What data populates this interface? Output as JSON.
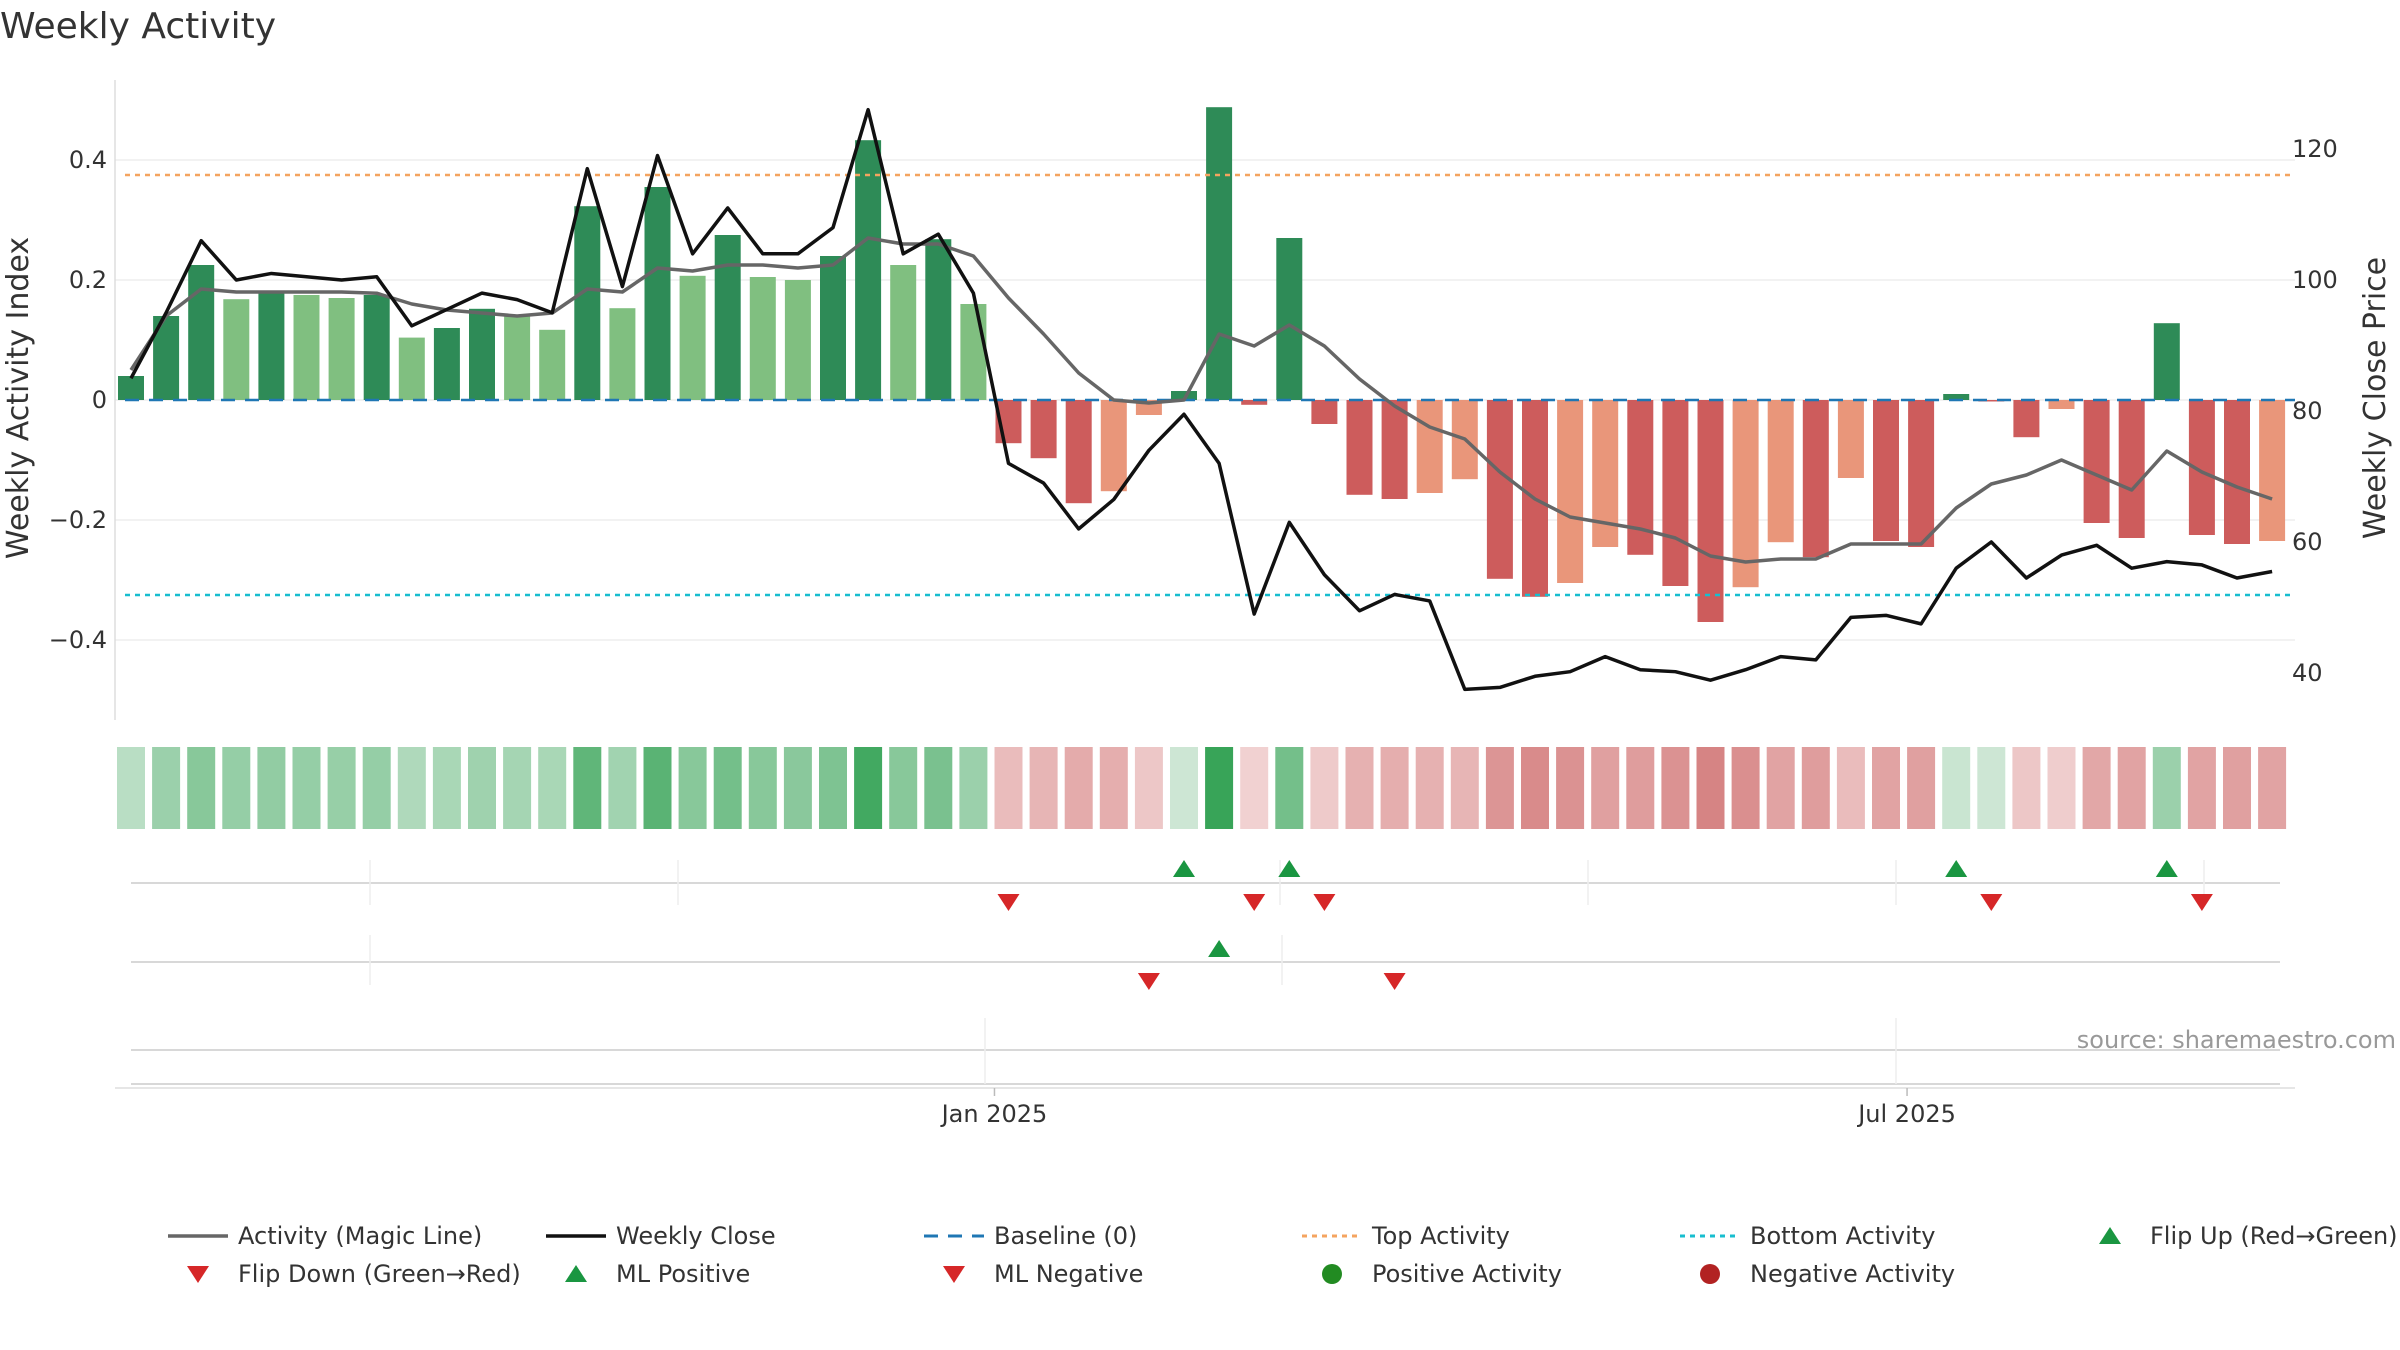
{
  "chart_data": {
    "type": "bar",
    "title": "Weekly Activity",
    "ylabel_left": "Weekly Activity Index",
    "ylabel_right": "Weekly Close Price",
    "ylim_left": [
      -0.53,
      0.53
    ],
    "ylim_right": [
      30,
      130
    ],
    "yticks_left": [
      {
        "value": 0.4,
        "label": "0.4"
      },
      {
        "value": 0.2,
        "label": "0.2"
      },
      {
        "value": 0,
        "label": "0"
      },
      {
        "value": -0.2,
        "label": "−0.2"
      },
      {
        "value": -0.4,
        "label": "−0.4"
      }
    ],
    "yticks_right": [
      {
        "value": 120,
        "label": "120"
      },
      {
        "value": 100,
        "label": "100"
      },
      {
        "value": 80,
        "label": "80"
      },
      {
        "value": 60,
        "label": "60"
      },
      {
        "value": 40,
        "label": "40"
      }
    ],
    "xticks": [
      {
        "index": 24.6,
        "label": "Jan 2025"
      },
      {
        "index": 50.6,
        "label": "Jul 2025"
      }
    ],
    "top_activity": 0.375,
    "bottom_activity": -0.325,
    "activity": [
      0.04,
      0.14,
      0.225,
      0.168,
      0.178,
      0.175,
      0.17,
      0.175,
      0.104,
      0.12,
      0.152,
      0.14,
      0.117,
      0.323,
      0.153,
      0.355,
      0.207,
      0.275,
      0.205,
      0.2,
      0.24,
      0.433,
      0.225,
      0.268,
      0.16,
      -0.072,
      -0.097,
      -0.172,
      -0.152,
      -0.025,
      0.015,
      0.488,
      -0.008,
      0.27,
      -0.04,
      -0.158,
      -0.165,
      -0.155,
      -0.132,
      -0.298,
      -0.328,
      -0.305,
      -0.245,
      -0.258,
      -0.31,
      -0.37,
      -0.312,
      -0.237,
      -0.262,
      -0.13,
      -0.235,
      -0.245,
      0.01,
      0.0,
      -0.062,
      -0.015,
      -0.205,
      -0.23,
      0.128,
      -0.225,
      -0.24,
      -0.235
    ],
    "bar_colors": [
      "#2e8b57",
      "#2e8b57",
      "#2e8b57",
      "#80bf80",
      "#2e8b57",
      "#80bf80",
      "#80bf80",
      "#2e8b57",
      "#80bf80",
      "#2e8b57",
      "#2e8b57",
      "#80bf80",
      "#80bf80",
      "#2e8b57",
      "#80bf80",
      "#2e8b57",
      "#80bf80",
      "#2e8b57",
      "#80bf80",
      "#80bf80",
      "#2e8b57",
      "#2e8b57",
      "#80bf80",
      "#2e8b57",
      "#80bf80",
      "#cd5c5c",
      "#cd5c5c",
      "#cd5c5c",
      "#e9967a",
      "#e9967a",
      "#2e8b57",
      "#2e8b57",
      "#cd5c5c",
      "#2e8b57",
      "#cd5c5c",
      "#cd5c5c",
      "#cd5c5c",
      "#e9967a",
      "#e9967a",
      "#cd5c5c",
      "#cd5c5c",
      "#e9967a",
      "#e9967a",
      "#cd5c5c",
      "#cd5c5c",
      "#cd5c5c",
      "#e9967a",
      "#e9967a",
      "#cd5c5c",
      "#e9967a",
      "#cd5c5c",
      "#cd5c5c",
      "#2e8b57",
      "#cd5c5c",
      "#cd5c5c",
      "#e9967a",
      "#cd5c5c",
      "#cd5c5c",
      "#2e8b57",
      "#cd5c5c",
      "#cd5c5c",
      "#e9967a"
    ],
    "magic_line": [
      0.05,
      0.14,
      0.185,
      0.18,
      0.18,
      0.18,
      0.18,
      0.178,
      0.16,
      0.15,
      0.145,
      0.14,
      0.145,
      0.185,
      0.18,
      0.22,
      0.215,
      0.225,
      0.225,
      0.22,
      0.225,
      0.27,
      0.26,
      0.26,
      0.24,
      0.17,
      0.11,
      0.045,
      0.0,
      -0.005,
      0.0,
      0.11,
      0.09,
      0.125,
      0.09,
      0.035,
      -0.01,
      -0.045,
      -0.065,
      -0.12,
      -0.165,
      -0.195,
      -0.205,
      -0.215,
      -0.23,
      -0.26,
      -0.27,
      -0.265,
      -0.265,
      -0.24,
      -0.24,
      -0.24,
      -0.18,
      -0.14,
      -0.125,
      -0.1,
      -0.125,
      -0.15,
      -0.085,
      -0.12,
      -0.145,
      -0.165
    ],
    "weekly_close": [
      85,
      95,
      106,
      100,
      101,
      100.5,
      100,
      100.5,
      93,
      95.5,
      98,
      97,
      95,
      117,
      99,
      119,
      104,
      111,
      104,
      104,
      108,
      126,
      104,
      107,
      98,
      72,
      69,
      62,
      66.5,
      74,
      79.5,
      72,
      49,
      63,
      55,
      49.5,
      52,
      51,
      37.5,
      37.8,
      39.5,
      40.2,
      42.5,
      40.5,
      40.2,
      38.9,
      40.5,
      42.5,
      42,
      48.5,
      48.8,
      47.5,
      56,
      60,
      54.5,
      58,
      59.5,
      56,
      57,
      56.5,
      54.5,
      55.5
    ],
    "heat_strip": [
      0.3,
      0.45,
      0.55,
      0.48,
      0.5,
      0.48,
      0.47,
      0.48,
      0.35,
      0.38,
      0.43,
      0.4,
      0.38,
      0.75,
      0.42,
      0.78,
      0.55,
      0.65,
      0.55,
      0.54,
      0.6,
      0.9,
      0.55,
      0.62,
      0.45,
      0.3,
      0.35,
      0.42,
      0.4,
      0.22,
      0.2,
      0.95,
      0.15,
      0.65,
      0.2,
      0.38,
      0.4,
      0.38,
      0.35,
      0.58,
      0.65,
      0.6,
      0.5,
      0.52,
      0.6,
      0.7,
      0.62,
      0.48,
      0.52,
      0.3,
      0.48,
      0.5,
      0.22,
      0.2,
      0.22,
      0.18,
      0.45,
      0.48,
      0.45,
      0.48,
      0.5,
      0.48
    ],
    "flip_up": [
      30,
      33,
      52,
      58
    ],
    "flip_down": [
      25,
      32,
      34,
      53,
      59
    ],
    "ml_positive": [
      31
    ],
    "ml_negative": [
      29,
      36
    ],
    "source": "source: sharemaestro.com",
    "legend": [
      {
        "key": "magic",
        "label": "Activity (Magic Line)",
        "color": "#666666"
      },
      {
        "key": "close",
        "label": "Weekly Close",
        "color": "#111111"
      },
      {
        "key": "baseline",
        "label": "Baseline (0)",
        "color": "#1f77b4"
      },
      {
        "key": "top",
        "label": "Top Activity",
        "color": "#f4a460"
      },
      {
        "key": "bottom",
        "label": "Bottom Activity",
        "color": "#17becf"
      },
      {
        "key": "flipup",
        "label": "Flip Up (Red→Green)",
        "color": "#1a9641"
      },
      {
        "key": "flipdown",
        "label": "Flip Down (Green→Red)",
        "color": "#d62728"
      },
      {
        "key": "mlpos",
        "label": "ML Positive",
        "color": "#1a9641"
      },
      {
        "key": "mlneg",
        "label": "ML Negative",
        "color": "#d62728"
      },
      {
        "key": "posact",
        "label": "Positive Activity",
        "color": "#228b22"
      },
      {
        "key": "negact",
        "label": "Negative Activity",
        "color": "#b22222"
      }
    ]
  }
}
